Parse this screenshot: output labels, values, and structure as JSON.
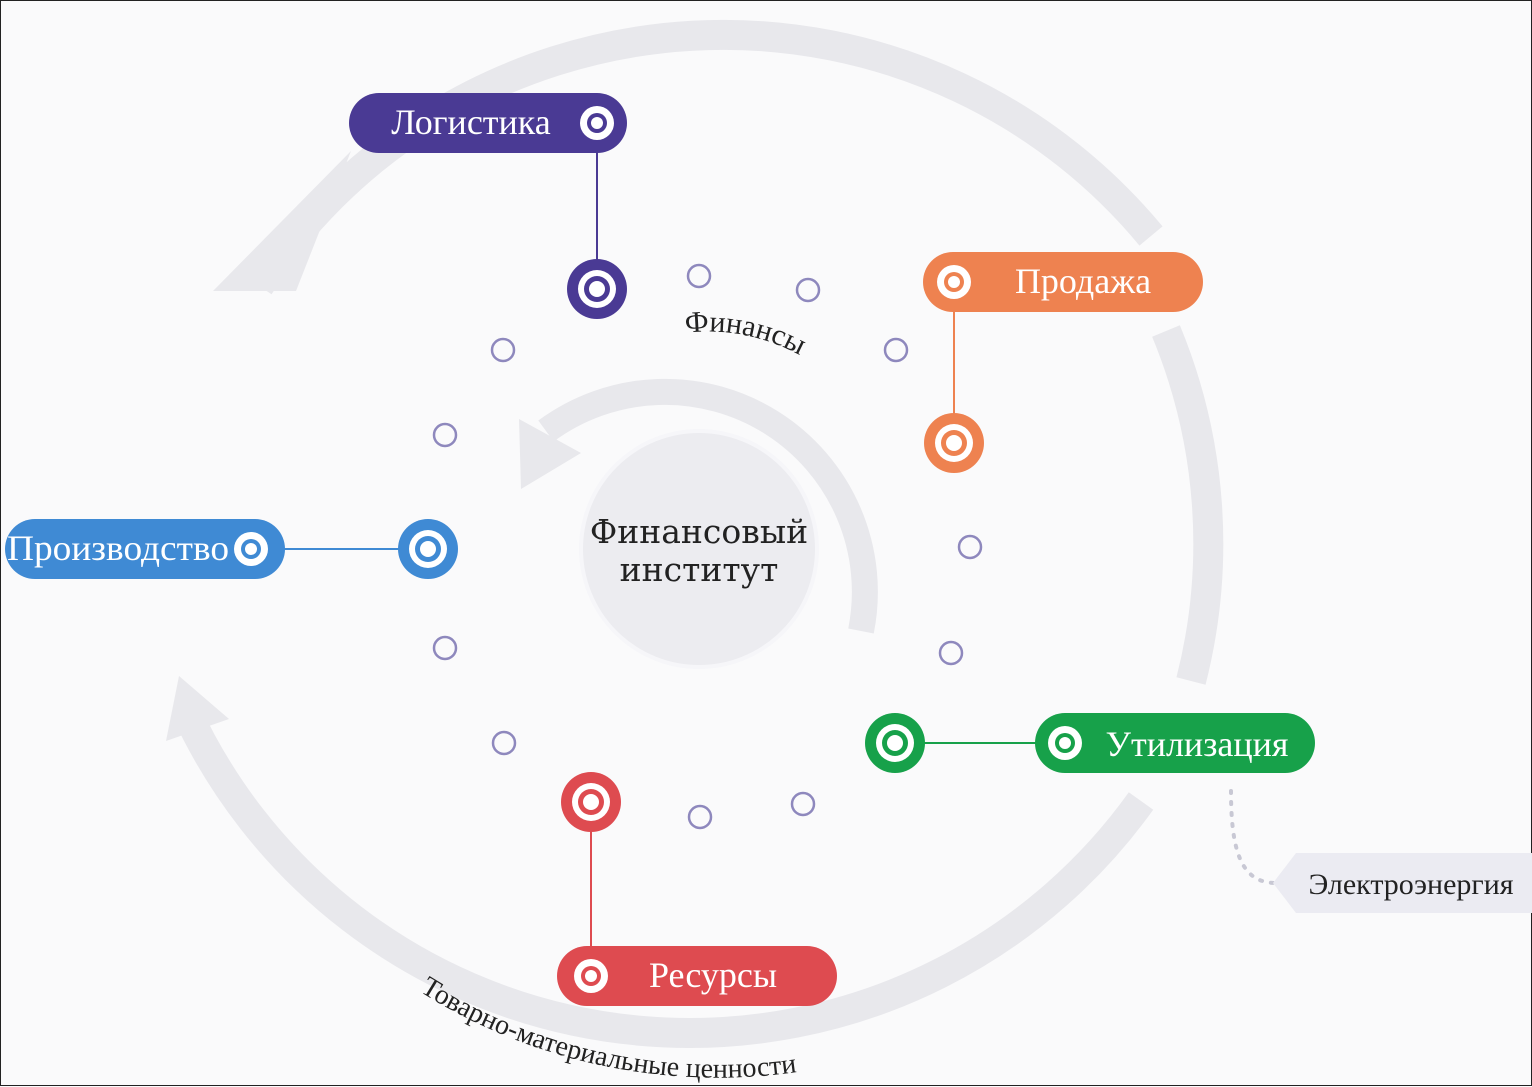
{
  "center": {
    "line1": "Финансовый",
    "line2": "институт"
  },
  "inner_arc_label": "Финансы",
  "outer_arc_label": "Товарно-материальные ценности",
  "external_label": "Электроэнергия",
  "nodes": {
    "logistics": {
      "label": "Логистика",
      "color": "#4a3a94"
    },
    "sales": {
      "label": "Продажа",
      "color": "#ee8250"
    },
    "production": {
      "label": "Производство",
      "color": "#3f8ad4"
    },
    "disposal": {
      "label": "Утилизация",
      "color": "#17a14a"
    },
    "resources": {
      "label": "Ресурсы",
      "color": "#de4b50"
    }
  },
  "colors": {
    "arc": "#e8e8ec",
    "small_ring": "#8e88bd",
    "center_fill": "#ececf0",
    "external_tag": "#ebebf2"
  }
}
